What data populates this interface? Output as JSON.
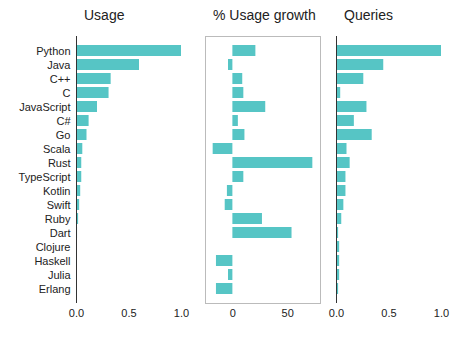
{
  "chart_data": [
    {
      "type": "bar",
      "orientation": "horizontal",
      "title": "Usage",
      "categories": [
        "Python",
        "Java",
        "C++",
        "C",
        "JavaScript",
        "C#",
        "Go",
        "Scala",
        "Rust",
        "TypeScript",
        "Kotlin",
        "Swift",
        "Ruby",
        "Dart",
        "Clojure",
        "Haskell",
        "Julia",
        "Erlang"
      ],
      "values": [
        1.0,
        0.6,
        0.33,
        0.31,
        0.2,
        0.12,
        0.1,
        0.06,
        0.05,
        0.05,
        0.04,
        0.03,
        0.02,
        0.01,
        0.005,
        0.005,
        0.005,
        0.003
      ],
      "color": "#56c5c5",
      "xlim": [
        0,
        1
      ],
      "xticks": [
        {
          "value": 0,
          "label": "0.0"
        },
        {
          "value": 0.5,
          "label": "0.5"
        },
        {
          "value": 1,
          "label": "1.0"
        }
      ]
    },
    {
      "type": "bar",
      "orientation": "horizontal",
      "title": "% Usage growth",
      "categories": [
        "Python",
        "Java",
        "C++",
        "C",
        "JavaScript",
        "C#",
        "Go",
        "Scala",
        "Rust",
        "TypeScript",
        "Kotlin",
        "Swift",
        "Ruby",
        "Dart",
        "Clojure",
        "Haskell",
        "Julia",
        "Erlang"
      ],
      "values": [
        21,
        -4,
        9,
        10,
        30,
        5,
        11,
        -18,
        73,
        10,
        -5,
        -7,
        27,
        54,
        0,
        -15,
        -4,
        -15
      ],
      "color": "#56c5c5",
      "xlim": [
        -25,
        80
      ],
      "xticks": [
        0,
        50
      ],
      "tick_labels": "x"
    },
    {
      "type": "bar",
      "orientation": "horizontal",
      "title": "Queries",
      "categories": [
        "Python",
        "Java",
        "C++",
        "C",
        "JavaScript",
        "C#",
        "Go",
        "Scala",
        "Rust",
        "TypeScript",
        "Kotlin",
        "Swift",
        "Ruby",
        "Dart",
        "Clojure",
        "Haskell",
        "Julia",
        "Erlang"
      ],
      "values": [
        1.0,
        0.45,
        0.26,
        0.04,
        0.29,
        0.17,
        0.34,
        0.1,
        0.13,
        0.09,
        0.09,
        0.07,
        0.05,
        0.02,
        0.03,
        0.03,
        0.03,
        0.02
      ],
      "color": "#56c5c5",
      "xlim": [
        0,
        1
      ],
      "xticks": [
        {
          "value": 0,
          "label": "0.0"
        },
        {
          "value": 0.5,
          "label": "0.5"
        },
        {
          "value": 1,
          "label": "1.0"
        }
      ],
      "tick_labels": "x"
    }
  ]
}
